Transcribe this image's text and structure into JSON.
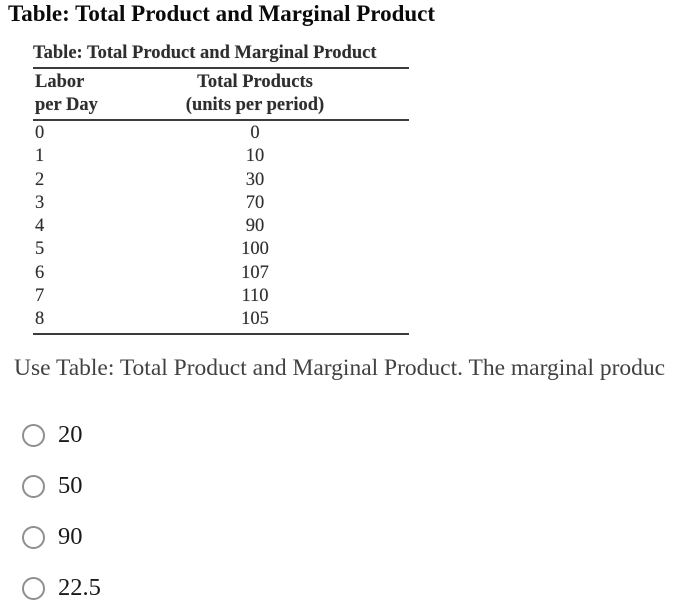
{
  "heading": "Table: Total Product and Marginal Product",
  "table": {
    "title": "Table: Total Product and Marginal Product",
    "col1_header": [
      "Labor",
      "per Day"
    ],
    "col2_header": [
      "Total Products",
      "(units per period)"
    ],
    "rows": [
      {
        "labor": "0",
        "total": "0"
      },
      {
        "labor": "1",
        "total": "10"
      },
      {
        "labor": "2",
        "total": "30"
      },
      {
        "labor": "3",
        "total": "70"
      },
      {
        "labor": "4",
        "total": "90"
      },
      {
        "labor": "5",
        "total": "100"
      },
      {
        "labor": "6",
        "total": "107"
      },
      {
        "labor": "7",
        "total": "110"
      },
      {
        "labor": "8",
        "total": "105"
      }
    ]
  },
  "question": {
    "text": "Use Table: Total Product and Marginal Product. The marginal produc"
  },
  "options": [
    {
      "label": "20",
      "selected": false
    },
    {
      "label": "50",
      "selected": false
    },
    {
      "label": "90",
      "selected": false
    },
    {
      "label": "22.5",
      "selected": false
    }
  ],
  "colors": {
    "background": "#ffffff",
    "heading_text": "#0a0a0a",
    "table_text": "#2e2e2e",
    "table_rule": "#3c3c3c",
    "question_text": "#414141",
    "option_text": "#1a1a1a",
    "radio_border": "#8f8f8f"
  }
}
